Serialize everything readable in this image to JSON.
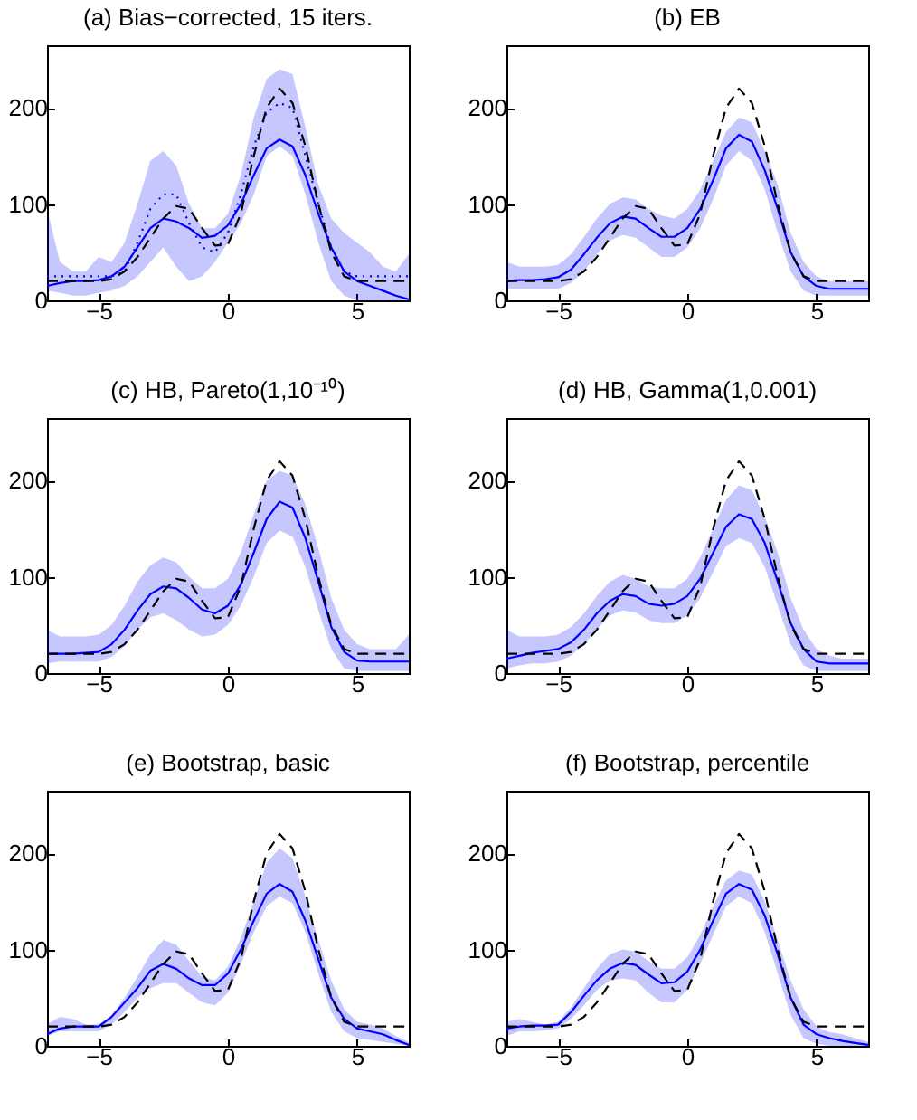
{
  "chart_data": [
    {
      "type": "line",
      "title": "(a) Bias−corrected, 15 iters.",
      "x": [
        -7,
        -6.5,
        -6,
        -5.5,
        -5,
        -4.5,
        -4,
        -3.5,
        -3,
        -2.5,
        -2,
        -1.5,
        -1,
        -0.5,
        0,
        0.5,
        1,
        1.5,
        2,
        2.5,
        3,
        3.5,
        4,
        4.5,
        5,
        5.5,
        6,
        6.5,
        7
      ],
      "xlim": [
        -7,
        7
      ],
      "xticks": [
        -5,
        0,
        5
      ],
      "ylim": [
        0,
        265
      ],
      "yticks": [
        0,
        100,
        200
      ],
      "series": [
        {
          "color": "#0000ff",
          "line_style": "solid",
          "values": [
            15,
            18,
            20,
            20,
            21,
            25,
            35,
            55,
            75,
            85,
            82,
            75,
            65,
            67,
            78,
            100,
            130,
            158,
            167,
            160,
            130,
            90,
            55,
            30,
            20,
            15,
            10,
            5,
            1
          ],
          "lower": [
            10,
            8,
            5,
            5,
            8,
            10,
            15,
            25,
            40,
            55,
            35,
            20,
            25,
            40,
            60,
            80,
            110,
            150,
            160,
            150,
            110,
            60,
            20,
            5,
            0,
            0,
            0,
            0,
            0
          ],
          "upper": [
            95,
            40,
            30,
            30,
            45,
            40,
            60,
            100,
            145,
            155,
            140,
            100,
            75,
            75,
            90,
            130,
            190,
            230,
            240,
            235,
            180,
            120,
            85,
            70,
            60,
            50,
            35,
            30,
            48
          ]
        },
        {
          "color": "#0000ff",
          "line_style": "dotted",
          "values": [
            25,
            25,
            25,
            25,
            25,
            25,
            30,
            60,
            95,
            110,
            110,
            80,
            55,
            50,
            70,
            110,
            160,
            195,
            205,
            200,
            150,
            100,
            55,
            30,
            25,
            25,
            25,
            25,
            25
          ]
        },
        {
          "color": "#000000",
          "line_style": "dashed",
          "values": [
            20,
            20,
            20,
            20,
            20,
            22,
            30,
            45,
            65,
            85,
            98,
            95,
            75,
            57,
            58,
            90,
            150,
            200,
            220,
            205,
            160,
            100,
            50,
            25,
            20,
            20,
            20,
            20,
            20
          ]
        }
      ]
    },
    {
      "type": "line",
      "title": "(b) EB",
      "x": [
        -7,
        -6.5,
        -6,
        -5.5,
        -5,
        -4.5,
        -4,
        -3.5,
        -3,
        -2.5,
        -2,
        -1.5,
        -1,
        -0.5,
        0,
        0.5,
        1,
        1.5,
        2,
        2.5,
        3,
        3.5,
        4,
        4.5,
        5,
        5.5,
        6,
        6.5,
        7
      ],
      "xlim": [
        -7,
        7
      ],
      "xticks": [
        -5,
        0,
        5
      ],
      "ylim": [
        0,
        265
      ],
      "yticks": [
        0,
        100,
        200
      ],
      "series": [
        {
          "color": "#0000ff",
          "line_style": "solid",
          "values": [
            20,
            21,
            21,
            22,
            24,
            32,
            48,
            65,
            80,
            87,
            85,
            75,
            66,
            66,
            75,
            95,
            125,
            158,
            172,
            165,
            135,
            95,
            50,
            25,
            15,
            12,
            12,
            12,
            12
          ],
          "lower": [
            12,
            12,
            12,
            12,
            12,
            18,
            30,
            48,
            62,
            68,
            65,
            55,
            45,
            45,
            55,
            75,
            105,
            140,
            155,
            145,
            115,
            70,
            30,
            10,
            5,
            5,
            5,
            5,
            5
          ],
          "upper": [
            40,
            35,
            35,
            35,
            37,
            48,
            66,
            85,
            100,
            107,
            105,
            95,
            88,
            85,
            95,
            115,
            145,
            175,
            190,
            185,
            155,
            120,
            70,
            40,
            25,
            20,
            20,
            20,
            20
          ]
        },
        {
          "color": "#000000",
          "line_style": "dashed",
          "values": [
            20,
            20,
            20,
            20,
            20,
            22,
            30,
            45,
            65,
            85,
            98,
            95,
            75,
            57,
            58,
            90,
            150,
            200,
            220,
            205,
            160,
            100,
            50,
            25,
            20,
            20,
            20,
            20,
            20
          ]
        }
      ]
    },
    {
      "type": "line",
      "title": "(c) HB, Pareto(1,10⁻¹⁰)",
      "x": [
        -7,
        -6.5,
        -6,
        -5.5,
        -5,
        -4.5,
        -4,
        -3.5,
        -3,
        -2.5,
        -2,
        -1.5,
        -1,
        -0.5,
        0,
        0.5,
        1,
        1.5,
        2,
        2.5,
        3,
        3.5,
        4,
        4.5,
        5,
        5.5,
        6,
        6.5,
        7
      ],
      "xlim": [
        -7,
        7
      ],
      "xticks": [
        -5,
        0,
        5
      ],
      "ylim": [
        0,
        265
      ],
      "yticks": [
        0,
        100,
        200
      ],
      "series": [
        {
          "color": "#0000ff",
          "line_style": "solid",
          "values": [
            20,
            20,
            20,
            21,
            22,
            30,
            45,
            65,
            82,
            90,
            88,
            78,
            66,
            62,
            70,
            92,
            125,
            160,
            178,
            172,
            140,
            95,
            48,
            22,
            13,
            12,
            12,
            12,
            12
          ],
          "lower": [
            10,
            12,
            12,
            12,
            12,
            17,
            28,
            45,
            58,
            62,
            55,
            45,
            38,
            40,
            50,
            70,
            100,
            135,
            148,
            142,
            110,
            65,
            25,
            5,
            2,
            2,
            2,
            2,
            2
          ],
          "upper": [
            45,
            38,
            38,
            38,
            40,
            50,
            70,
            95,
            112,
            120,
            115,
            100,
            88,
            88,
            98,
            125,
            165,
            200,
            210,
            205,
            175,
            130,
            78,
            45,
            30,
            25,
            25,
            25,
            40
          ]
        },
        {
          "color": "#000000",
          "line_style": "dashed",
          "values": [
            20,
            20,
            20,
            20,
            20,
            22,
            30,
            45,
            65,
            85,
            98,
            95,
            75,
            57,
            58,
            90,
            150,
            200,
            220,
            205,
            160,
            100,
            50,
            25,
            20,
            20,
            20,
            20,
            20
          ]
        }
      ]
    },
    {
      "type": "line",
      "title": "(d) HB, Gamma(1,0.001)",
      "x": [
        -7,
        -6.5,
        -6,
        -5.5,
        -5,
        -4.5,
        -4,
        -3.5,
        -3,
        -2.5,
        -2,
        -1.5,
        -1,
        -0.5,
        0,
        0.5,
        1,
        1.5,
        2,
        2.5,
        3,
        3.5,
        4,
        4.5,
        5,
        5.5,
        6,
        6.5,
        7
      ],
      "xlim": [
        -7,
        7
      ],
      "xticks": [
        -5,
        0,
        5
      ],
      "ylim": [
        0,
        265
      ],
      "yticks": [
        0,
        100,
        200
      ],
      "series": [
        {
          "color": "#0000ff",
          "line_style": "solid",
          "values": [
            15,
            18,
            21,
            23,
            25,
            32,
            45,
            62,
            75,
            82,
            80,
            72,
            70,
            72,
            80,
            98,
            125,
            152,
            165,
            160,
            135,
            95,
            52,
            25,
            12,
            10,
            10,
            10,
            10
          ],
          "lower": [
            5,
            8,
            10,
            10,
            12,
            18,
            30,
            45,
            60,
            65,
            63,
            55,
            52,
            52,
            60,
            78,
            105,
            132,
            140,
            135,
            110,
            70,
            30,
            8,
            2,
            2,
            2,
            2,
            2
          ],
          "upper": [
            45,
            38,
            38,
            38,
            40,
            48,
            62,
            80,
            95,
            102,
            98,
            90,
            88,
            88,
            98,
            120,
            150,
            180,
            195,
            190,
            162,
            125,
            78,
            45,
            25,
            18,
            15,
            15,
            15
          ]
        },
        {
          "color": "#000000",
          "line_style": "dashed",
          "values": [
            20,
            20,
            20,
            20,
            20,
            22,
            30,
            45,
            65,
            85,
            98,
            95,
            75,
            57,
            58,
            90,
            150,
            200,
            220,
            205,
            160,
            100,
            50,
            25,
            20,
            20,
            20,
            20,
            20
          ]
        }
      ]
    },
    {
      "type": "line",
      "title": "(e) Bootstrap, basic",
      "x": [
        -7,
        -6.5,
        -6,
        -5.5,
        -5,
        -4.5,
        -4,
        -3.5,
        -3,
        -2.5,
        -2,
        -1.5,
        -1,
        -0.5,
        0,
        0.5,
        1,
        1.5,
        2,
        2.5,
        3,
        3.5,
        4,
        4.5,
        5,
        5.5,
        6,
        6.5,
        7
      ],
      "xlim": [
        -7,
        7
      ],
      "xticks": [
        -5,
        0,
        5
      ],
      "ylim": [
        0,
        265
      ],
      "yticks": [
        0,
        100,
        200
      ],
      "series": [
        {
          "color": "#0000ff",
          "line_style": "solid",
          "values": [
            12,
            18,
            20,
            20,
            20,
            30,
            45,
            60,
            78,
            85,
            80,
            70,
            63,
            63,
            75,
            100,
            130,
            158,
            168,
            160,
            130,
            90,
            50,
            28,
            18,
            15,
            12,
            6,
            1
          ],
          "lower": [
            10,
            15,
            15,
            15,
            15,
            22,
            35,
            50,
            60,
            65,
            65,
            55,
            45,
            42,
            55,
            85,
            118,
            145,
            155,
            148,
            118,
            75,
            35,
            15,
            8,
            6,
            4,
            2,
            0
          ],
          "upper": [
            22,
            30,
            28,
            22,
            22,
            32,
            50,
            72,
            95,
            110,
            105,
            88,
            72,
            68,
            82,
            112,
            150,
            190,
            205,
            195,
            155,
            110,
            68,
            38,
            25,
            22,
            18,
            10,
            4
          ]
        },
        {
          "color": "#000000",
          "line_style": "dashed",
          "values": [
            20,
            20,
            20,
            20,
            20,
            22,
            30,
            45,
            65,
            85,
            98,
            95,
            75,
            57,
            58,
            90,
            150,
            200,
            220,
            205,
            160,
            100,
            50,
            25,
            20,
            20,
            20,
            20,
            20
          ]
        }
      ]
    },
    {
      "type": "line",
      "title": "(f) Bootstrap, percentile",
      "x": [
        -7,
        -6.5,
        -6,
        -5.5,
        -5,
        -4.5,
        -4,
        -3.5,
        -3,
        -2.5,
        -2,
        -1.5,
        -1,
        -0.5,
        0,
        0.5,
        1,
        1.5,
        2,
        2.5,
        3,
        3.5,
        4,
        4.5,
        5,
        5.5,
        6,
        6.5,
        7
      ],
      "xlim": [
        -7,
        7
      ],
      "xticks": [
        -5,
        0,
        5
      ],
      "ylim": [
        0,
        265
      ],
      "yticks": [
        0,
        100,
        200
      ],
      "series": [
        {
          "color": "#0000ff",
          "line_style": "solid",
          "values": [
            18,
            20,
            21,
            21,
            22,
            35,
            52,
            68,
            80,
            86,
            84,
            74,
            65,
            66,
            77,
            100,
            130,
            158,
            168,
            162,
            135,
            95,
            50,
            22,
            12,
            8,
            5,
            3,
            1
          ],
          "lower": [
            10,
            15,
            15,
            16,
            18,
            28,
            42,
            58,
            68,
            70,
            68,
            55,
            45,
            45,
            58,
            85,
            115,
            145,
            155,
            148,
            118,
            75,
            32,
            8,
            2,
            0,
            0,
            0,
            0
          ],
          "upper": [
            25,
            28,
            25,
            22,
            25,
            40,
            60,
            80,
            95,
            100,
            98,
            88,
            80,
            80,
            92,
            115,
            145,
            172,
            182,
            178,
            150,
            110,
            68,
            38,
            20,
            14,
            12,
            8,
            4
          ]
        },
        {
          "color": "#000000",
          "line_style": "dashed",
          "values": [
            20,
            20,
            20,
            20,
            20,
            22,
            30,
            45,
            65,
            85,
            98,
            95,
            75,
            57,
            58,
            90,
            150,
            200,
            220,
            205,
            160,
            100,
            50,
            25,
            20,
            20,
            20,
            20,
            20
          ]
        }
      ]
    }
  ]
}
